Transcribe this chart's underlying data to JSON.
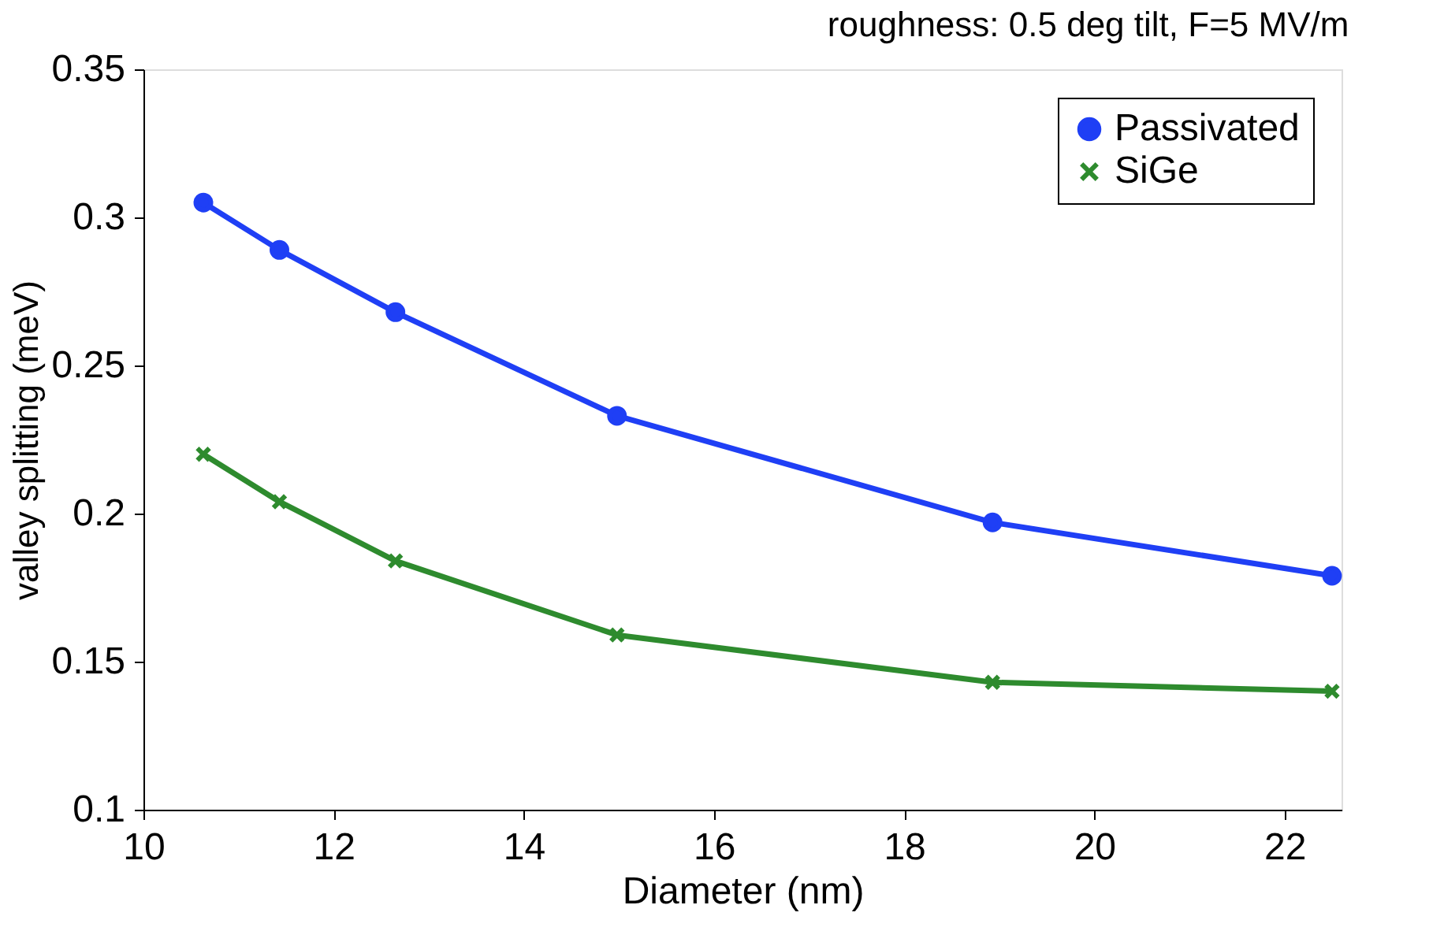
{
  "chart_data": {
    "type": "line",
    "title": "roughness: 0.5 deg tilt, F=5 MV/m",
    "xlabel": "Diameter (nm)",
    "ylabel": "valley splitting (meV)",
    "x": [
      10.63,
      11.43,
      12.65,
      14.98,
      18.93,
      22.5
    ],
    "series": [
      {
        "name": "Passivated",
        "color": "#1f3ff5",
        "marker": "circle",
        "values": [
          0.305,
          0.289,
          0.268,
          0.233,
          0.197,
          0.179
        ]
      },
      {
        "name": "SiGe",
        "color": "#2e8b2e",
        "marker": "cross",
        "values": [
          0.22,
          0.204,
          0.184,
          0.159,
          0.143,
          0.14
        ]
      }
    ],
    "xlim": [
      10,
      22.6
    ],
    "xticks": [
      10,
      12,
      14,
      16,
      18,
      20,
      22
    ],
    "ylim": [
      0.1,
      0.35
    ],
    "yticks": [
      0.1,
      0.15,
      0.2,
      0.25,
      0.3,
      0.35
    ],
    "grid": false,
    "legend": "top right",
    "line_style": "solid"
  }
}
